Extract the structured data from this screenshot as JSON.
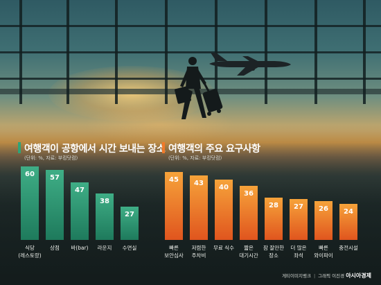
{
  "colors": {
    "left_bar_top": "#3fae86",
    "left_bar_bottom": "#1e7a5c",
    "right_bar_top": "#f6a33a",
    "right_bar_bottom": "#e0551e",
    "left_accent": "#2fa378",
    "right_accent": "#f07a2a"
  },
  "chart_data": [
    {
      "type": "bar",
      "title": "여행객이 공항에서 시간 보내는 장소",
      "note": "(단위: %, 자료: 부킹닷컴)",
      "categories": [
        "식당\n(레스토랑)",
        "상점",
        "바(bar)",
        "라운지",
        "수면실"
      ],
      "values": [
        60,
        57,
        47,
        38,
        27
      ],
      "ylim": [
        0,
        70
      ]
    },
    {
      "type": "bar",
      "title": "여행객의 주요 요구사항",
      "note": "(단위: %, 자료: 부킹닷컴)",
      "categories": [
        "빠른\n보안심사",
        "저렴한\n주차비",
        "무료 식수",
        "짧은\n대기시간",
        "잠 잘만한\n장소",
        "더 많은\n좌석",
        "빠른\n와이파이",
        "충전시설"
      ],
      "values": [
        45,
        43,
        40,
        36,
        28,
        27,
        26,
        24
      ],
      "ylim": [
        0,
        52
      ]
    }
  ],
  "credit": {
    "photo": "게티이미지뱅크",
    "graphic": "그래픽 이진경",
    "brand": "아시아경제"
  }
}
